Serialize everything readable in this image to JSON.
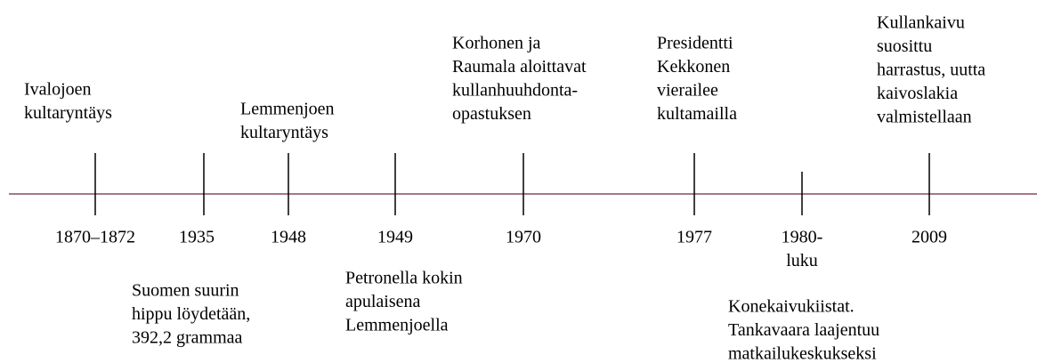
{
  "events": [
    {
      "date_lines": [
        "1870–1872"
      ],
      "description_lines": [
        "Ivalojoen",
        "kultaryntäys"
      ]
    },
    {
      "date_lines": [
        "1935"
      ],
      "description_lines": [
        "Suomen suurin",
        "hippu löydetään,",
        "392,2 grammaa"
      ]
    },
    {
      "date_lines": [
        "1948"
      ],
      "description_lines": [
        "Lemmenjoen",
        "kultaryntäys"
      ]
    },
    {
      "date_lines": [
        "1949"
      ],
      "description_lines": [
        "Petronella kokin",
        "apulaisena",
        "Lemmenjoella"
      ]
    },
    {
      "date_lines": [
        "1970"
      ],
      "description_lines": [
        "Korhonen ja",
        "Raumala aloittavat",
        "kullanhuuhdonta-",
        "opastuksen"
      ]
    },
    {
      "date_lines": [
        "1977"
      ],
      "description_lines": [
        "Presidentti",
        "Kekkonen",
        "vierailee",
        "kultamailla"
      ]
    },
    {
      "date_lines": [
        "1980-",
        "luku"
      ],
      "description_lines": [
        "Konekaivukiistat.",
        "Tankavaara laajentuu",
        "matkailukeskukseksi"
      ]
    },
    {
      "date_lines": [
        "2009"
      ],
      "description_lines": [
        "Kullankaivu",
        "suosittu",
        "harrastus, uutta",
        "kaivoslakia",
        "valmistellaan"
      ]
    }
  ]
}
